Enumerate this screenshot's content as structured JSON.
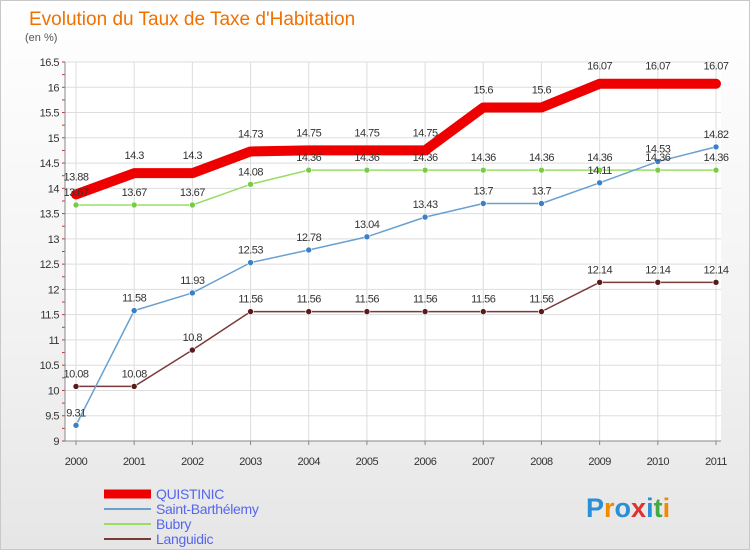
{
  "chart_data": {
    "type": "line",
    "title": "Evolution du Taux de Taxe d'Habitation",
    "unit_label": "(en %)",
    "categories": [
      "2000",
      "2001",
      "2002",
      "2003",
      "2004",
      "2005",
      "2006",
      "2007",
      "2008",
      "2009",
      "2010",
      "2011"
    ],
    "ylim": [
      9,
      16.5
    ],
    "yticks": [
      "9",
      "9.5",
      "10",
      "10.5",
      "11",
      "11.5",
      "12",
      "12.5",
      "13",
      "13.5",
      "14",
      "14.5",
      "15",
      "15.5",
      "16",
      "16.5"
    ],
    "grid": true,
    "legend_position": "bottom-left",
    "series": [
      {
        "name": "QUISTINIC",
        "color": "#ee0000",
        "bold": true,
        "values": [
          13.88,
          14.3,
          14.3,
          14.73,
          14.75,
          14.75,
          14.75,
          15.6,
          15.6,
          16.07,
          16.07,
          16.07
        ],
        "labels": [
          "13.88",
          "14.3",
          "14.3",
          "14.73",
          "14.75",
          "14.75",
          "14.75",
          "15.6",
          "15.6",
          "16.07",
          "16.07",
          "16.07"
        ]
      },
      {
        "name": "Saint-Barthélemy",
        "color": "#6aa0d0",
        "marker": "#3a80c8",
        "values": [
          9.31,
          11.58,
          11.93,
          12.53,
          12.78,
          13.04,
          13.43,
          13.7,
          13.7,
          14.11,
          14.53,
          14.82
        ],
        "labels": [
          "9.31",
          "11.58",
          "11.93",
          "12.53",
          "12.78",
          "13.04",
          "13.43",
          "13.7",
          "13.7",
          "14.11",
          "14.53",
          "14.82"
        ]
      },
      {
        "name": "Bubry",
        "color": "#99dd66",
        "marker": "#77cc44",
        "values": [
          13.67,
          13.67,
          13.67,
          14.08,
          14.36,
          14.36,
          14.36,
          14.36,
          14.36,
          14.36,
          14.36,
          14.36
        ],
        "labels": [
          "13.67",
          "13.67",
          "13.67",
          "14.08",
          "14.36",
          "14.36",
          "14.36",
          "14.36",
          "14.36",
          "14.36",
          "14.36",
          "14.36"
        ]
      },
      {
        "name": "Languidic",
        "color": "#7a3a3a",
        "marker": "#5a1a1a",
        "values": [
          10.08,
          10.08,
          10.8,
          11.56,
          11.56,
          11.56,
          11.56,
          11.56,
          11.56,
          12.14,
          12.14,
          12.14
        ],
        "labels": [
          "10.08",
          "10.08",
          "10.8",
          "11.56",
          "11.56",
          "11.56",
          "11.56",
          "11.56",
          "11.56",
          "12.14",
          "12.14",
          "12.14"
        ]
      }
    ]
  },
  "logo": {
    "text": "Proxiti",
    "colors": [
      "#2a8fd4",
      "#f08a00",
      "#2a8fd4",
      "#e03030",
      "#2a8fd4",
      "#44aa44",
      "#f08a00"
    ]
  }
}
